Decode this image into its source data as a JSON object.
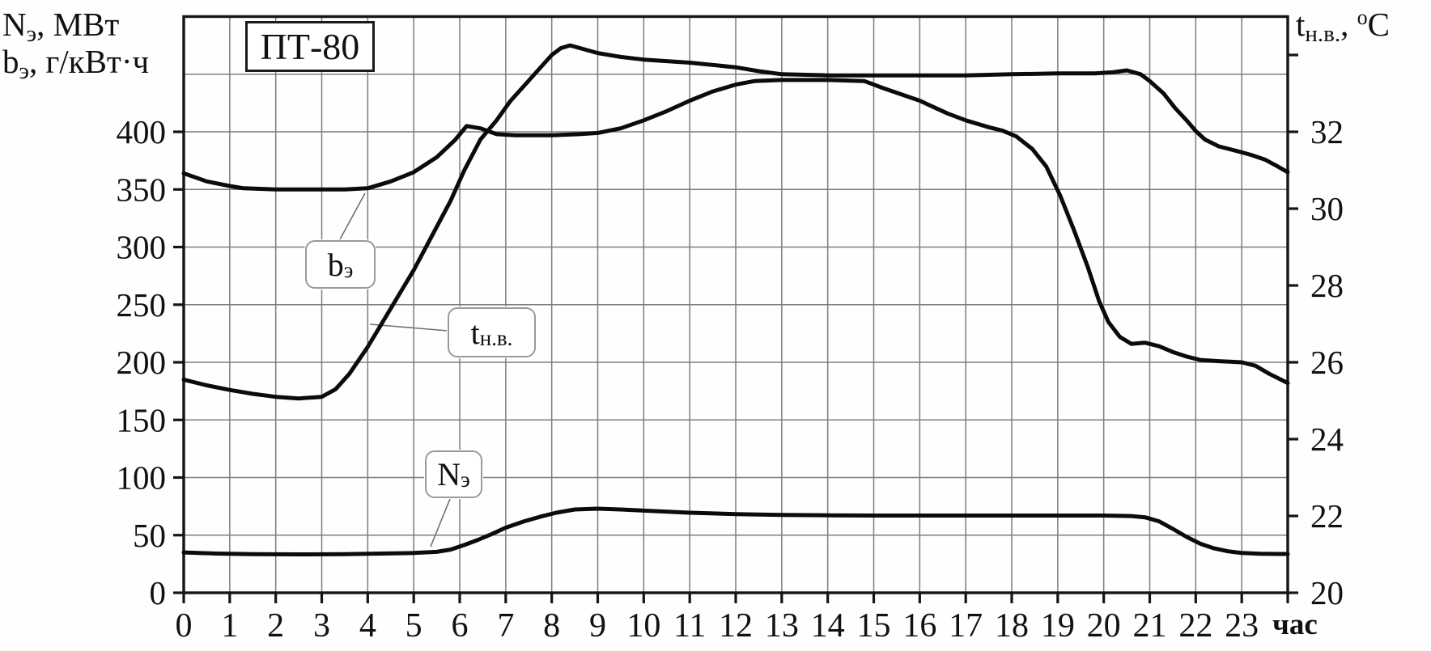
{
  "figure": {
    "title_box": "ПТ-80",
    "left_axis_title_1": {
      "main": "N",
      "sub": "э",
      "rest": ", МВт"
    },
    "left_axis_title_2": {
      "main": "b",
      "sub": "э",
      "rest": ", г/кВт·ч"
    },
    "right_axis_title": {
      "main": "t",
      "sub": "н.в.",
      "comma": ", ",
      "sup": "o",
      "unit": "C"
    },
    "x_axis_unit": "час",
    "callouts": {
      "be": {
        "main": "b",
        "sub": "э"
      },
      "tnv": {
        "main": "t",
        "sub": "н.в."
      },
      "ne": {
        "main": "N",
        "sub": "э"
      }
    },
    "colors": {
      "curve": "#0b0b0b",
      "grid": "#7d7d7d",
      "frame": "#151515",
      "leader": "#6f6f6f"
    }
  },
  "chart_data": {
    "type": "line",
    "title": "ПТ-80 daily operation chart",
    "xlabel": "час",
    "x_range_hours": [
      0,
      24
    ],
    "x_tick_labels": [
      "0",
      "1",
      "2",
      "3",
      "4",
      "5",
      "6",
      "7",
      "8",
      "9",
      "10",
      "11",
      "12",
      "13",
      "14",
      "15",
      "16",
      "17",
      "18",
      "19",
      "20",
      "21",
      "22",
      "23"
    ],
    "left_axis": {
      "label": "Nэ, МВт / bэ, г/кВт·ч",
      "range": [
        0,
        500
      ],
      "grid_step": 50,
      "tick_values": [
        0,
        50,
        100,
        150,
        200,
        250,
        300,
        350,
        400
      ]
    },
    "right_axis": {
      "label": "tн.в., °C",
      "range": [
        20,
        35
      ],
      "tick_step": 2,
      "tick_values": [
        20,
        22,
        24,
        26,
        28,
        30,
        32
      ],
      "unlabeled_tick_values": [
        34
      ]
    },
    "grid": true,
    "legend_position": "callout-boxes-inside-plot",
    "series": [
      {
        "id": "be",
        "name": "bэ",
        "axis": "left",
        "units": "г/кВт·ч",
        "points": [
          [
            0,
            364
          ],
          [
            0.5,
            357
          ],
          [
            1,
            353
          ],
          [
            1.3,
            351
          ],
          [
            2,
            350
          ],
          [
            3,
            350
          ],
          [
            3.5,
            350
          ],
          [
            4,
            351
          ],
          [
            4.5,
            357
          ],
          [
            5,
            365
          ],
          [
            5.5,
            378
          ],
          [
            5.9,
            393
          ],
          [
            6.15,
            405
          ],
          [
            6.45,
            403
          ],
          [
            6.8,
            398
          ],
          [
            7.2,
            397
          ],
          [
            8,
            397
          ],
          [
            8.6,
            398
          ],
          [
            9,
            399
          ],
          [
            9.5,
            403
          ],
          [
            10,
            410
          ],
          [
            10.5,
            418
          ],
          [
            11,
            427
          ],
          [
            11.5,
            435
          ],
          [
            12,
            441
          ],
          [
            12.4,
            444
          ],
          [
            13,
            445
          ],
          [
            14,
            445
          ],
          [
            14.8,
            444
          ],
          [
            15.2,
            438
          ],
          [
            16,
            427
          ],
          [
            16.6,
            416
          ],
          [
            17,
            410
          ],
          [
            17.5,
            404
          ],
          [
            17.8,
            401
          ],
          [
            18.1,
            396
          ],
          [
            18.45,
            385
          ],
          [
            18.75,
            370
          ],
          [
            19.05,
            345
          ],
          [
            19.35,
            315
          ],
          [
            19.65,
            283
          ],
          [
            19.9,
            253
          ],
          [
            20.1,
            235
          ],
          [
            20.35,
            222
          ],
          [
            20.6,
            216
          ],
          [
            20.9,
            217
          ],
          [
            21.2,
            214
          ],
          [
            21.5,
            209
          ],
          [
            21.8,
            205
          ],
          [
            22.1,
            202
          ],
          [
            22.5,
            201
          ],
          [
            23,
            200
          ],
          [
            23.3,
            197
          ],
          [
            23.6,
            190
          ],
          [
            23.85,
            185
          ],
          [
            24,
            182
          ]
        ]
      },
      {
        "id": "tnv",
        "name": "tн.в.",
        "axis": "right",
        "units": "°C",
        "points": [
          [
            0,
            25.55
          ],
          [
            0.5,
            25.4
          ],
          [
            1,
            25.28
          ],
          [
            1.5,
            25.18
          ],
          [
            2,
            25.1
          ],
          [
            2.5,
            25.06
          ],
          [
            3,
            25.1
          ],
          [
            3.3,
            25.3
          ],
          [
            3.6,
            25.7
          ],
          [
            4,
            26.4
          ],
          [
            4.3,
            27.0
          ],
          [
            4.7,
            27.8
          ],
          [
            5,
            28.4
          ],
          [
            5.4,
            29.3
          ],
          [
            5.8,
            30.2
          ],
          [
            6.1,
            31.0
          ],
          [
            6.45,
            31.8
          ],
          [
            6.8,
            32.3
          ],
          [
            7.1,
            32.8
          ],
          [
            7.4,
            33.2
          ],
          [
            7.7,
            33.6
          ],
          [
            8,
            34.0
          ],
          [
            8.2,
            34.18
          ],
          [
            8.4,
            34.25
          ],
          [
            8.7,
            34.15
          ],
          [
            9,
            34.05
          ],
          [
            9.5,
            33.95
          ],
          [
            10,
            33.88
          ],
          [
            11,
            33.8
          ],
          [
            12,
            33.68
          ],
          [
            12.5,
            33.58
          ],
          [
            13,
            33.5
          ],
          [
            14,
            33.47
          ],
          [
            15,
            33.47
          ],
          [
            16,
            33.47
          ],
          [
            17,
            33.47
          ],
          [
            18,
            33.5
          ],
          [
            19,
            33.52
          ],
          [
            19.8,
            33.52
          ],
          [
            20.2,
            33.55
          ],
          [
            20.5,
            33.6
          ],
          [
            20.8,
            33.5
          ],
          [
            21,
            33.32
          ],
          [
            21.3,
            33.0
          ],
          [
            21.55,
            32.62
          ],
          [
            21.8,
            32.3
          ],
          [
            22,
            32.02
          ],
          [
            22.2,
            31.8
          ],
          [
            22.5,
            31.62
          ],
          [
            22.9,
            31.5
          ],
          [
            23.2,
            31.4
          ],
          [
            23.5,
            31.28
          ],
          [
            23.75,
            31.12
          ],
          [
            24,
            30.95
          ]
        ]
      },
      {
        "id": "ne",
        "name": "Nэ",
        "axis": "left",
        "units": "МВт",
        "points": [
          [
            0,
            35
          ],
          [
            0.7,
            34
          ],
          [
            1.5,
            33.5
          ],
          [
            2.5,
            33.3
          ],
          [
            3.5,
            33.5
          ],
          [
            4.3,
            34
          ],
          [
            5,
            34.5
          ],
          [
            5.5,
            35.5
          ],
          [
            5.8,
            37.5
          ],
          [
            6.1,
            41.5
          ],
          [
            6.4,
            46
          ],
          [
            6.7,
            51
          ],
          [
            7,
            56.5
          ],
          [
            7.4,
            62
          ],
          [
            7.8,
            66.5
          ],
          [
            8.1,
            69.5
          ],
          [
            8.5,
            72.3
          ],
          [
            9,
            73
          ],
          [
            9.5,
            72.3
          ],
          [
            10,
            71.3
          ],
          [
            11,
            69.5
          ],
          [
            12,
            68.3
          ],
          [
            13,
            67.6
          ],
          [
            14,
            67.2
          ],
          [
            15,
            67
          ],
          [
            16,
            67
          ],
          [
            17,
            67
          ],
          [
            18,
            67
          ],
          [
            19,
            67
          ],
          [
            20,
            67
          ],
          [
            20.6,
            66.6
          ],
          [
            20.9,
            65.5
          ],
          [
            21.2,
            62
          ],
          [
            21.5,
            55.5
          ],
          [
            21.8,
            48.5
          ],
          [
            22.1,
            42.5
          ],
          [
            22.4,
            38.5
          ],
          [
            22.7,
            36
          ],
          [
            23,
            34.5
          ],
          [
            23.4,
            33.8
          ],
          [
            23.8,
            33.7
          ],
          [
            24,
            33.7
          ]
        ]
      }
    ]
  }
}
